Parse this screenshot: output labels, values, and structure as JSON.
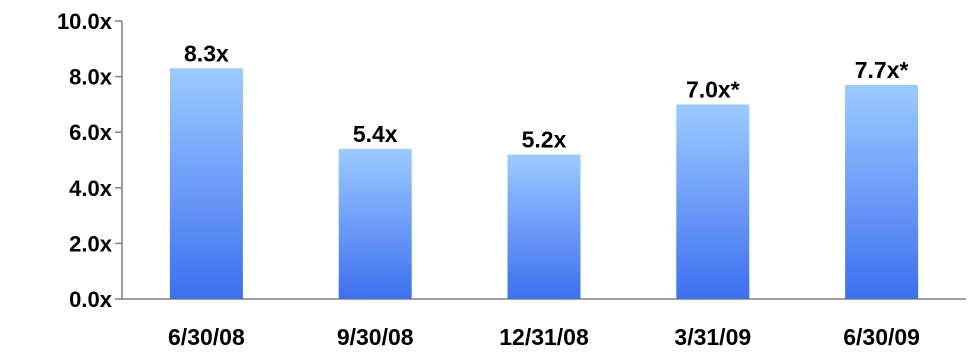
{
  "chart_data": {
    "type": "bar",
    "categories": [
      "6/30/08",
      "9/30/08",
      "12/31/08",
      "3/31/09",
      "6/30/09"
    ],
    "values": [
      8.3,
      5.4,
      5.2,
      7.0,
      7.7
    ],
    "data_labels": [
      "8.3x",
      "5.4x",
      "5.2x",
      "7.0x*",
      "7.7x*"
    ],
    "y_tick_values": [
      0,
      2,
      4,
      6,
      8,
      10
    ],
    "y_tick_labels": [
      "0.0x",
      "2.0x",
      "4.0x",
      "6.0x",
      "8.0x",
      "10.0x"
    ],
    "ylim": [
      0,
      10
    ],
    "title": "",
    "xlabel": "",
    "ylabel": "",
    "grid": false,
    "legend": "none",
    "colors": {
      "bar_top": "#9ccbff",
      "bar_bottom": "#3d6ff0",
      "axis": "#808080",
      "text": "#000000"
    }
  }
}
